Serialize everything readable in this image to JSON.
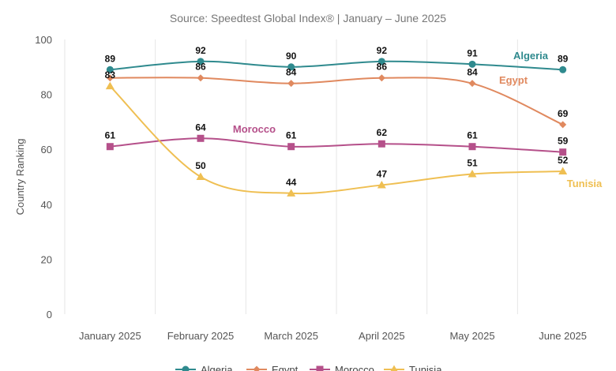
{
  "subtitle": "Source: Speedtest Global Index® | January – June 2025",
  "chart_data": {
    "type": "line",
    "subtitle": "Source: Speedtest Global Index® | January – June 2025",
    "ylabel": "Country Ranking",
    "xlabel": "",
    "categories": [
      "January 2025",
      "February 2025",
      "March 2025",
      "April 2025",
      "May 2025",
      "June 2025"
    ],
    "ylim": [
      0,
      100
    ],
    "yticks": [
      0,
      20,
      40,
      60,
      80,
      100
    ],
    "grid": "vertical",
    "legend": "bottom",
    "series": [
      {
        "name": "Algeria",
        "color": "#2f8a8e",
        "marker": "circle",
        "values": [
          89,
          92,
          90,
          92,
          91,
          89
        ]
      },
      {
        "name": "Egypt",
        "color": "#e0895f",
        "marker": "diamond",
        "values": [
          86,
          86,
          84,
          86,
          84,
          69
        ]
      },
      {
        "name": "Morocco",
        "color": "#b5508a",
        "marker": "square",
        "values": [
          61,
          64,
          61,
          62,
          61,
          59
        ]
      },
      {
        "name": "Tunisia",
        "color": "#efbf52",
        "marker": "triangle",
        "values": [
          83,
          50,
          44,
          47,
          51,
          52
        ]
      }
    ]
  }
}
